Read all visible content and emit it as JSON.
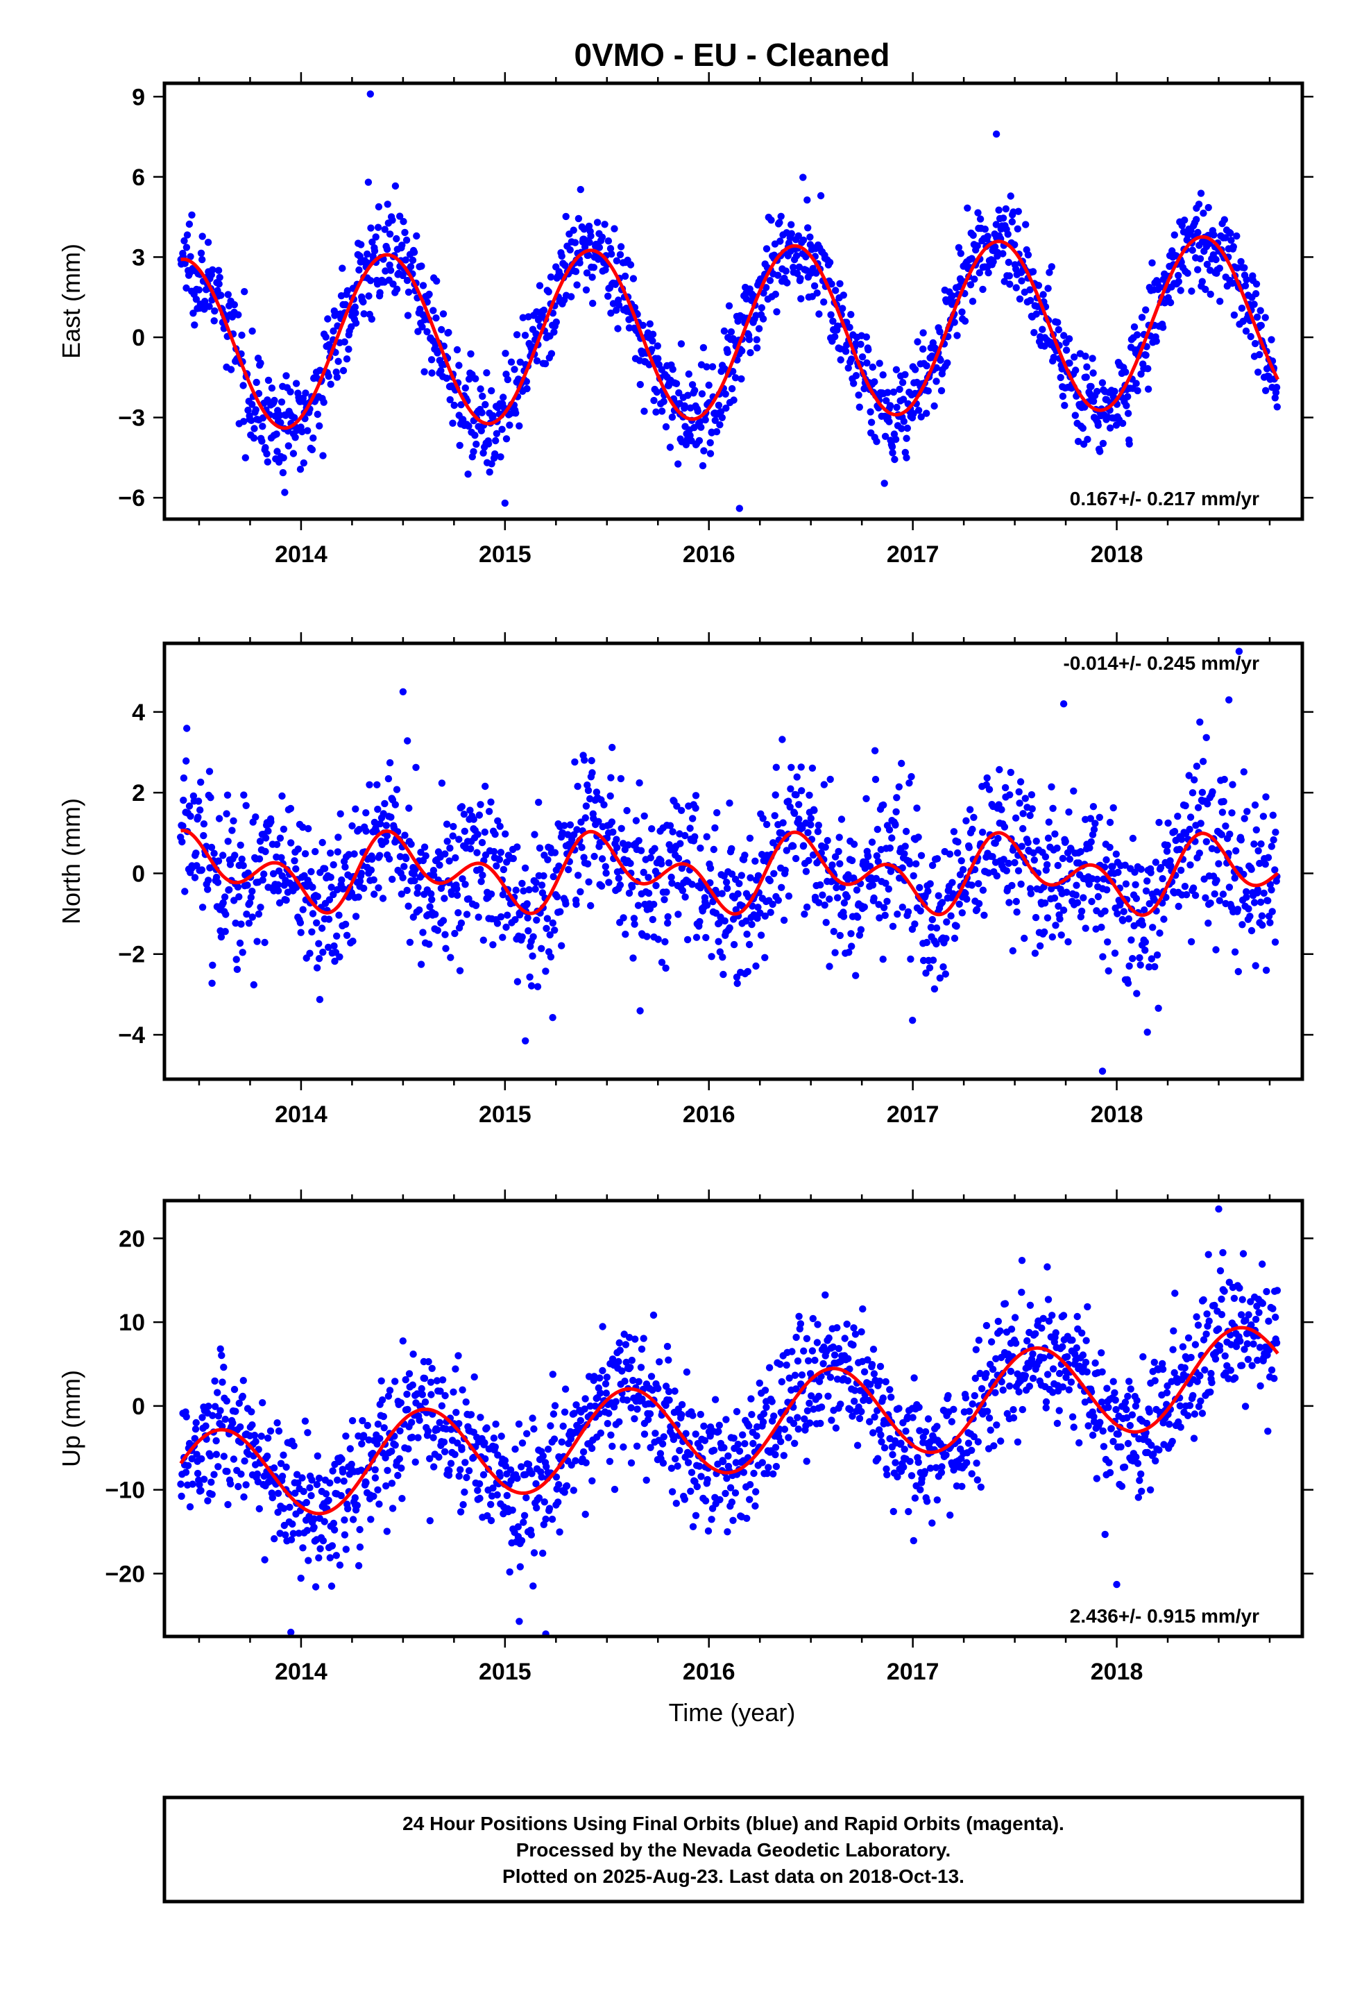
{
  "title": "0VMO  - EU - Cleaned",
  "xlabel": "Time (year)",
  "footer": {
    "lines": [
      "24 Hour Positions Using Final Orbits (blue) and Rapid Orbits (magenta).",
      "Processed by the Nevada Geodetic Laboratory.",
      "Plotted on 2025-Aug-23. Last data on 2018-Oct-13."
    ]
  },
  "colors": {
    "points": "#0000ff",
    "fit": "#ff0000",
    "frame": "#000000"
  },
  "chart_data": [
    {
      "type": "scatter",
      "name": "east",
      "ylabel": "East (mm)",
      "rate_text": "0.167+/- 0.217 mm/yr",
      "rate_position": "bottom-right",
      "xlim": [
        2013.33,
        2018.91
      ],
      "ylim": [
        -6.8,
        9.5
      ],
      "xticks": [
        2014,
        2015,
        2016,
        2017,
        2018
      ],
      "yticks": [
        -6,
        -3,
        0,
        3,
        6,
        9
      ],
      "seasonal_fit": {
        "offset": 0.15,
        "annual_amplitude": 3.2,
        "peak_phase": 0.42,
        "trend_mm_per_yr": 0.167,
        "semiannual_amplitude": 0.0
      },
      "scatter_sigma": 0.9,
      "outliers": [
        [
          2014.34,
          9.1
        ],
        [
          2014.33,
          5.8
        ],
        [
          2016.15,
          -6.4
        ],
        [
          2013.92,
          -5.8
        ],
        [
          2017.41,
          7.6
        ],
        [
          2015.0,
          -6.2
        ]
      ],
      "series": [
        {
          "name": "final_orbits",
          "points": "blue"
        },
        {
          "name": "fit",
          "points": "red line"
        }
      ]
    },
    {
      "type": "scatter",
      "name": "north",
      "ylabel": "North (mm)",
      "rate_text": "-0.014+/- 0.245 mm/yr",
      "rate_position": "top-right",
      "xlim": [
        2013.33,
        2018.91
      ],
      "ylim": [
        -5.1,
        5.7
      ],
      "xticks": [
        2014,
        2015,
        2016,
        2017,
        2018
      ],
      "yticks": [
        -4,
        -2,
        0,
        2,
        4
      ],
      "seasonal_fit": {
        "offset": 0.0,
        "annual_amplitude": 0.55,
        "peak_phase": 0.52,
        "trend_mm_per_yr": -0.014,
        "semiannual_amplitude": 0.6
      },
      "scatter_sigma": 1.0,
      "outliers": [
        [
          2014.5,
          4.5
        ],
        [
          2017.74,
          4.2
        ],
        [
          2017.93,
          -4.9
        ],
        [
          2018.6,
          5.5
        ],
        [
          2018.55,
          4.3
        ],
        [
          2015.1,
          -4.15
        ]
      ],
      "series": [
        {
          "name": "final_orbits",
          "points": "blue"
        },
        {
          "name": "fit",
          "points": "red line"
        }
      ]
    },
    {
      "type": "scatter",
      "name": "up",
      "ylabel": "Up (mm)",
      "rate_text": "2.436+/- 0.915 mm/yr",
      "rate_position": "bottom-right",
      "xlim": [
        2013.33,
        2018.91
      ],
      "ylim": [
        -27.5,
        24.5
      ],
      "xticks": [
        2014,
        2015,
        2016,
        2017,
        2018
      ],
      "yticks": [
        -20,
        -10,
        0,
        10,
        20
      ],
      "seasonal_fit": {
        "offset": -2.6,
        "annual_amplitude": 5.6,
        "peak_phase": 0.6,
        "trend_mm_per_yr": 2.436,
        "semiannual_amplitude": 0.0
      },
      "scatter_sigma": 4.0,
      "outliers": [
        [
          2018.5,
          23.5
        ],
        [
          2013.95,
          -27.0
        ],
        [
          2015.07,
          -25.7
        ],
        [
          2015.2,
          -27.2
        ],
        [
          2018.0,
          -21.3
        ],
        [
          2014.15,
          -21.5
        ]
      ],
      "series": [
        {
          "name": "final_orbits",
          "points": "blue"
        },
        {
          "name": "fit",
          "points": "red line"
        }
      ]
    }
  ]
}
